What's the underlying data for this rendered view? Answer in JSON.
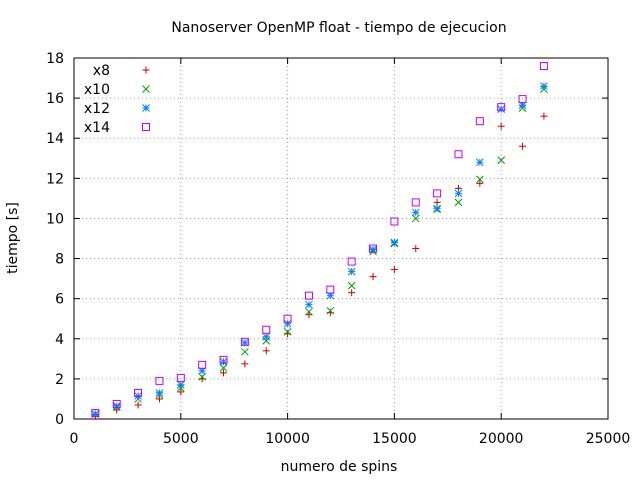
{
  "chart_data": {
    "type": "scatter",
    "title": "Nanoserver OpenMP float - tiempo de ejecucion",
    "xlabel": "numero de spins",
    "ylabel": "tiempo [s]",
    "xlim": [
      0,
      25000
    ],
    "ylim": [
      0,
      18
    ],
    "xticks": [
      0,
      5000,
      10000,
      15000,
      20000,
      25000
    ],
    "yticks": [
      0,
      2,
      4,
      6,
      8,
      10,
      12,
      14,
      16,
      18
    ],
    "grid": true,
    "legend_position": "top-left",
    "series": [
      {
        "name": "x8",
        "marker": "plus",
        "color": "#cc0000",
        "x": [
          1000,
          2000,
          3000,
          4000,
          5000,
          6000,
          7000,
          8000,
          9000,
          10000,
          11000,
          12000,
          13000,
          14000,
          15000,
          16000,
          17000,
          18000,
          19000,
          20000,
          21000,
          22000
        ],
        "y": [
          0.2,
          0.45,
          0.7,
          1.0,
          1.35,
          2.0,
          2.3,
          2.75,
          3.4,
          4.25,
          5.2,
          5.3,
          6.3,
          7.1,
          7.45,
          8.5,
          10.8,
          11.5,
          11.75,
          14.6,
          13.6,
          15.1
        ]
      },
      {
        "name": "x10",
        "marker": "cross",
        "color": "#00a000",
        "x": [
          1000,
          2000,
          3000,
          4000,
          5000,
          6000,
          7000,
          8000,
          9000,
          10000,
          11000,
          12000,
          13000,
          14000,
          15000,
          16000,
          17000,
          18000,
          19000,
          20000,
          21000,
          22000
        ],
        "y": [
          0.25,
          0.6,
          1.0,
          1.2,
          1.55,
          2.1,
          2.55,
          3.35,
          3.9,
          4.35,
          5.35,
          5.4,
          6.65,
          8.35,
          8.75,
          10.0,
          10.45,
          10.8,
          11.95,
          12.9,
          15.5,
          16.45
        ]
      },
      {
        "name": "x12",
        "marker": "star",
        "color": "#0080ff",
        "x": [
          1000,
          2000,
          3000,
          4000,
          5000,
          6000,
          7000,
          8000,
          9000,
          10000,
          11000,
          12000,
          13000,
          14000,
          15000,
          16000,
          17000,
          18000,
          19000,
          20000,
          21000,
          22000
        ],
        "y": [
          0.25,
          0.65,
          1.15,
          1.3,
          1.7,
          2.4,
          2.85,
          3.8,
          4.1,
          4.75,
          5.7,
          6.15,
          7.35,
          8.45,
          8.8,
          10.3,
          10.5,
          11.25,
          12.8,
          15.45,
          15.65,
          16.6
        ]
      },
      {
        "name": "x14",
        "marker": "square",
        "color": "#c000ff",
        "x": [
          1000,
          2000,
          3000,
          4000,
          5000,
          6000,
          7000,
          8000,
          9000,
          10000,
          11000,
          12000,
          13000,
          14000,
          15000,
          16000,
          17000,
          18000,
          19000,
          20000,
          21000,
          22000
        ],
        "y": [
          0.3,
          0.75,
          1.3,
          1.9,
          2.05,
          2.7,
          2.95,
          3.85,
          4.45,
          5.0,
          6.15,
          6.45,
          7.85,
          8.5,
          9.85,
          10.8,
          11.25,
          13.2,
          14.85,
          15.55,
          15.95,
          17.6
        ]
      }
    ]
  }
}
